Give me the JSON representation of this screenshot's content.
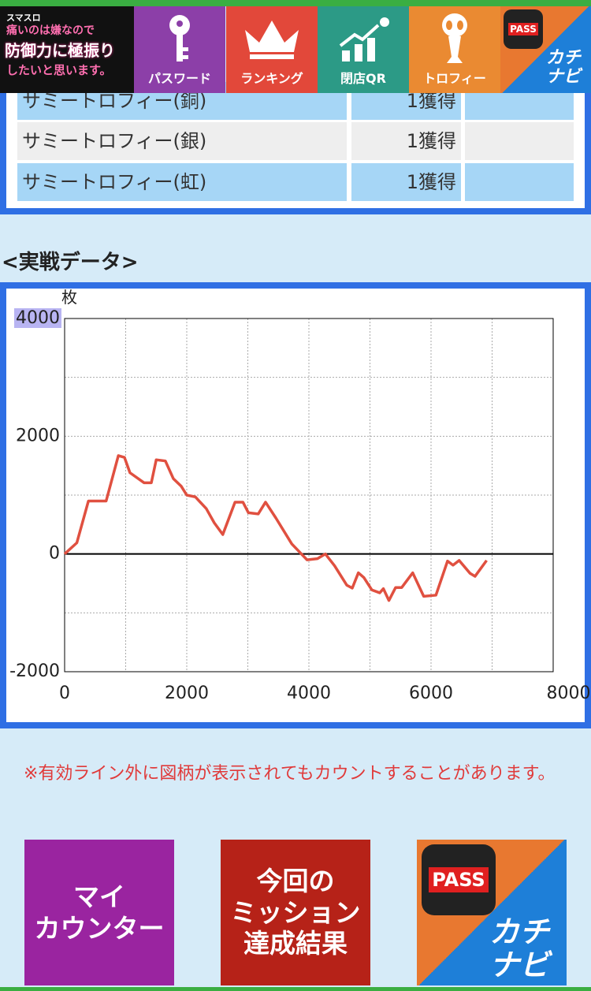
{
  "header": {
    "logo": {
      "top": "スマスロ",
      "line1": "痛いのは嫌なので",
      "line2": "防御力に極振り",
      "line3": "したいと思います。"
    },
    "nav": [
      "パスワード",
      "ランキング",
      "閉店QR",
      "トロフィー"
    ],
    "badge": {
      "pass": "PASS",
      "kachi": "カチ",
      "navi": "ナビ"
    }
  },
  "table": {
    "rows": [
      [
        "サミートロフィー(銅)",
        "1獲得"
      ],
      [
        "サミートロフィー(銀)",
        "1獲得"
      ],
      [
        "サミートロフィー(虹)",
        "1獲得"
      ]
    ]
  },
  "section_title": "<実戦データ>",
  "chart_data": {
    "type": "line",
    "y_label": "枚",
    "color": "#e05040",
    "x": [
      0,
      200,
      390,
      680,
      880,
      980,
      1070,
      1300,
      1420,
      1500,
      1650,
      1780,
      1910,
      2000,
      2140,
      2320,
      2450,
      2590,
      2790,
      2920,
      3010,
      3170,
      3290,
      3460,
      3720,
      3970,
      4140,
      4270,
      4420,
      4620,
      4710,
      4810,
      4900,
      5030,
      5160,
      5220,
      5310,
      5420,
      5520,
      5700,
      5880,
      6080,
      6270,
      6360,
      6460,
      6640,
      6720,
      6910
    ],
    "values": [
      0,
      190,
      900,
      900,
      1670,
      1640,
      1380,
      1210,
      1210,
      1600,
      1580,
      1280,
      1150,
      1000,
      970,
      770,
      530,
      330,
      880,
      880,
      700,
      680,
      880,
      610,
      170,
      -100,
      -80,
      0,
      -200,
      -530,
      -580,
      -320,
      -400,
      -610,
      -660,
      -590,
      -790,
      -570,
      -570,
      -320,
      -720,
      -700,
      -120,
      -190,
      -110,
      -330,
      -380,
      -110
    ],
    "xlim": [
      0,
      8000
    ],
    "ylim": [
      -2000,
      4000
    ],
    "xticks": [
      0,
      2000,
      4000,
      6000,
      {
        "value": 8000,
        "label": "8000G"
      }
    ],
    "yticks": [
      -2000,
      0,
      2000,
      4000
    ],
    "grid": true
  },
  "note": "※有効ライン外に図柄が表示されてもカウントすることがあります。",
  "buttons": [
    {
      "lines": [
        "マイ",
        "カウンター"
      ]
    },
    {
      "lines": [
        "今回の",
        "ミッション",
        "達成結果"
      ]
    }
  ]
}
